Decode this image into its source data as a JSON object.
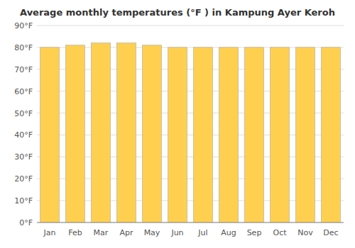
{
  "chart_data": {
    "type": "bar",
    "title": "Average monthly temperatures (°F ) in Kampung Ayer Keroh",
    "categories": [
      "Jan",
      "Feb",
      "Mar",
      "Apr",
      "May",
      "Jun",
      "Jul",
      "Aug",
      "Sep",
      "Oct",
      "Nov",
      "Dec"
    ],
    "values": [
      80,
      81,
      82,
      82,
      81,
      80,
      80,
      80,
      80,
      80,
      80,
      80
    ],
    "color": "#FFD050",
    "ylim": [
      0,
      90
    ],
    "yticks": [
      {
        "value": 0,
        "label": "0°F"
      },
      {
        "value": 10,
        "label": "10°F"
      },
      {
        "value": 20,
        "label": "20°F"
      },
      {
        "value": 30,
        "label": "30°F"
      },
      {
        "value": 40,
        "label": "40°F"
      },
      {
        "value": 50,
        "label": "50°F"
      },
      {
        "value": 60,
        "label": "60°F"
      },
      {
        "value": 70,
        "label": "70°F"
      },
      {
        "value": 80,
        "label": "80°F"
      },
      {
        "value": 90,
        "label": "90°F"
      }
    ],
    "grid": true
  }
}
